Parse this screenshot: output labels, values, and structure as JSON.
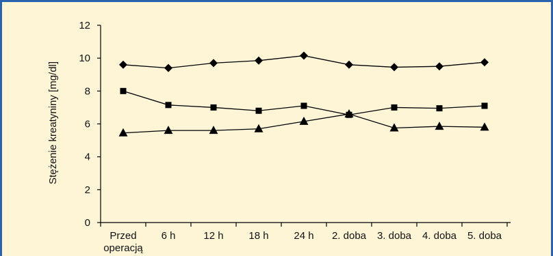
{
  "chart_data": {
    "type": "line",
    "title": "",
    "xlabel": "",
    "ylabel": "Stężenie kreatyniny [mg/dl]",
    "ylim": [
      0,
      12
    ],
    "yticks": [
      0,
      2,
      4,
      6,
      8,
      10,
      12
    ],
    "grid": false,
    "legend": "none",
    "categories": [
      [
        "Przed",
        "operacją"
      ],
      [
        "6 h"
      ],
      [
        "12 h"
      ],
      [
        "18 h"
      ],
      [
        "24 h"
      ],
      [
        "2. doba"
      ],
      [
        "3. doba"
      ],
      [
        "4. doba"
      ],
      [
        "5. doba"
      ]
    ],
    "series": [
      {
        "marker": "diamond",
        "color": "#000000",
        "values": [
          9.6,
          9.4,
          9.7,
          9.85,
          10.15,
          9.6,
          9.45,
          9.5,
          9.75
        ]
      },
      {
        "marker": "square",
        "color": "#000000",
        "values": [
          8.0,
          7.15,
          7.0,
          6.8,
          7.1,
          6.55,
          7.0,
          6.95,
          7.1
        ]
      },
      {
        "marker": "triangle",
        "color": "#000000",
        "values": [
          5.45,
          5.6,
          5.6,
          5.7,
          6.15,
          6.6,
          5.75,
          5.85,
          5.8
        ]
      }
    ]
  },
  "colors": {
    "background": "#fdf5d6",
    "border": "#2a63ad",
    "ink": "#000000"
  }
}
